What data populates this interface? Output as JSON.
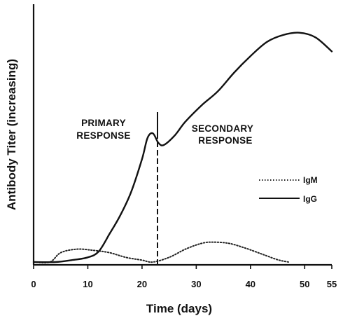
{
  "chart_data": {
    "type": "line",
    "xlabel": "Time (days)",
    "ylabel": "Antibody Titer (increasing)",
    "xlim": [
      0,
      55
    ],
    "x_ticks": [
      0,
      10,
      20,
      30,
      40,
      50,
      55
    ],
    "annotations": {
      "primary": [
        "PRIMARY",
        "RESPONSE"
      ],
      "secondary": [
        "SECONDARY",
        "RESPONSE"
      ],
      "marker_day": 22
    },
    "series": [
      {
        "name": "IgM",
        "line_style": "dotted",
        "color": "#222222",
        "points": [
          [
            0,
            0.0
          ],
          [
            3,
            0.0
          ],
          [
            5,
            0.04
          ],
          [
            8,
            0.055
          ],
          [
            11,
            0.05
          ],
          [
            14,
            0.04
          ],
          [
            17,
            0.02
          ],
          [
            20,
            0.008
          ],
          [
            22,
            0.0
          ],
          [
            25,
            0.02
          ],
          [
            28,
            0.055
          ],
          [
            31,
            0.08
          ],
          [
            33,
            0.085
          ],
          [
            36,
            0.08
          ],
          [
            39,
            0.06
          ],
          [
            42,
            0.035
          ],
          [
            45,
            0.01
          ],
          [
            47,
            0.0
          ]
        ]
      },
      {
        "name": "IgG",
        "line_style": "solid",
        "color": "#111111",
        "points": [
          [
            0,
            0.0
          ],
          [
            4,
            0.0
          ],
          [
            7,
            0.008
          ],
          [
            10,
            0.02
          ],
          [
            12,
            0.045
          ],
          [
            14,
            0.12
          ],
          [
            16,
            0.2
          ],
          [
            18,
            0.3
          ],
          [
            20,
            0.44
          ],
          [
            21,
            0.53
          ],
          [
            22,
            0.55
          ],
          [
            23,
            0.51
          ],
          [
            24,
            0.5
          ],
          [
            26,
            0.54
          ],
          [
            28,
            0.6
          ],
          [
            31,
            0.67
          ],
          [
            34,
            0.73
          ],
          [
            37,
            0.81
          ],
          [
            40,
            0.88
          ],
          [
            43,
            0.94
          ],
          [
            46,
            0.97
          ],
          [
            49,
            0.98
          ],
          [
            52,
            0.96
          ],
          [
            55,
            0.9
          ]
        ]
      }
    ]
  }
}
